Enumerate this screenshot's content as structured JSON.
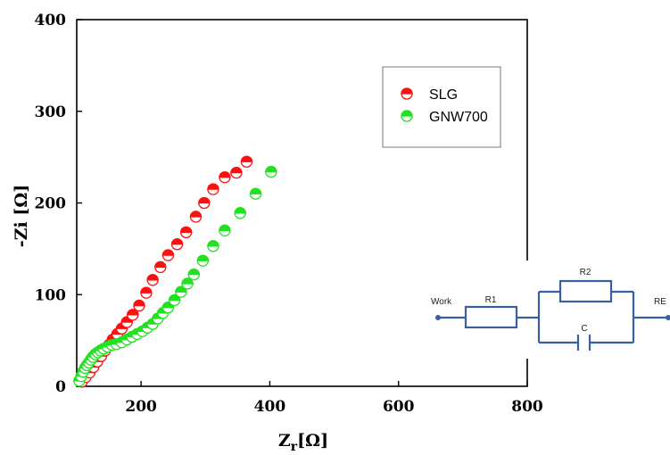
{
  "chart_data": {
    "type": "scatter",
    "xlabel_main": "Z",
    "xlabel_sub": "r",
    "xlabel_unit": "[Ω]",
    "ylabel": "-Zi [Ω]",
    "xlim": [
      100,
      800
    ],
    "ylim": [
      0,
      400
    ],
    "xticks": [
      200,
      400,
      600,
      800
    ],
    "yticks": [
      0,
      100,
      200,
      300,
      400
    ],
    "grid": false,
    "legend_position": "top-right",
    "series": [
      {
        "name": "SLG",
        "color": "#ff1010",
        "x": [
          108,
          114,
          120,
          126,
          132,
          138,
          144,
          150,
          156,
          163,
          170,
          178,
          187,
          197,
          208,
          218,
          230,
          242,
          256,
          270,
          285,
          298,
          312,
          330,
          348,
          364
        ],
        "y": [
          5,
          10,
          15,
          21,
          27,
          33,
          39,
          45,
          51,
          57,
          63,
          70,
          78,
          88,
          102,
          116,
          130,
          143,
          155,
          168,
          185,
          200,
          215,
          228,
          233,
          245
        ]
      },
      {
        "name": "GNW700",
        "color": "#22e022",
        "x": [
          104,
          107,
          110,
          113,
          116,
          119,
          122,
          125,
          129,
          133,
          137,
          142,
          148,
          155,
          162,
          170,
          178,
          186,
          194,
          202,
          210,
          218,
          226,
          234,
          242,
          252,
          262,
          272,
          282,
          296,
          312,
          330,
          354,
          378,
          402
        ],
        "y": [
          6,
          11,
          16,
          20,
          23,
          26,
          29,
          32,
          35,
          37,
          39,
          41,
          43,
          45,
          46,
          48,
          51,
          54,
          57,
          60,
          64,
          68,
          74,
          80,
          86,
          94,
          103,
          112,
          122,
          137,
          153,
          170,
          189,
          210,
          234
        ]
      }
    ]
  },
  "circuit": {
    "labels": [
      "Work",
      "R1",
      "R2",
      "C",
      "RE"
    ]
  }
}
